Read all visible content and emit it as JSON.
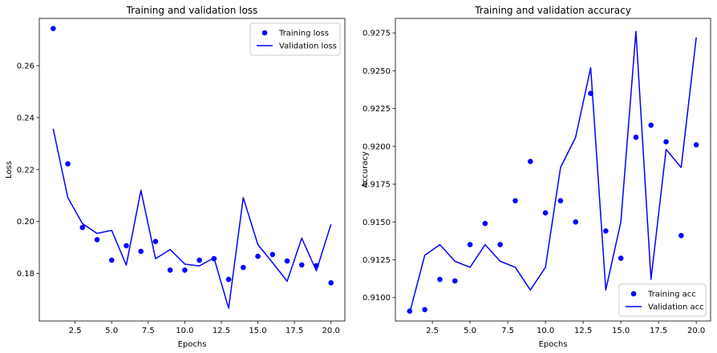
{
  "chart_data": [
    {
      "type": "line",
      "title": "Training and validation loss",
      "xlabel": "Epochs",
      "ylabel": "Loss",
      "xlim": [
        0.05,
        20.95
      ],
      "ylim": [
        0.1617,
        0.2782
      ],
      "xticks": [
        2.5,
        5.0,
        7.5,
        10.0,
        12.5,
        15.0,
        17.5,
        20.0
      ],
      "xtick_labels": [
        "2.5",
        "5.0",
        "7.5",
        "10.0",
        "12.5",
        "15.0",
        "17.5",
        "20.0"
      ],
      "yticks": [
        0.18,
        0.2,
        0.22,
        0.24,
        0.26
      ],
      "ytick_labels": [
        "0.18",
        "0.20",
        "0.22",
        "0.24",
        "0.26"
      ],
      "legend_position": "top-right",
      "grid": false,
      "x": [
        1,
        2,
        3,
        4,
        5,
        6,
        7,
        8,
        9,
        10,
        11,
        12,
        13,
        14,
        15,
        16,
        17,
        18,
        19,
        20
      ],
      "series": [
        {
          "name": "Training loss",
          "style": "points",
          "color": "#0000ff",
          "values": [
            0.2743,
            0.2222,
            0.1977,
            0.193,
            0.1851,
            0.1907,
            0.1885,
            0.1923,
            0.1813,
            0.1813,
            0.1851,
            0.1857,
            0.1777,
            0.1823,
            0.1866,
            0.1873,
            0.1848,
            0.1833,
            0.183,
            0.1764
          ]
        },
        {
          "name": "Validation loss",
          "style": "line",
          "color": "#0000ff",
          "values": [
            0.2357,
            0.2092,
            0.1992,
            0.1954,
            0.1966,
            0.1832,
            0.212,
            0.1857,
            0.1892,
            0.1836,
            0.1829,
            0.186,
            0.1666,
            0.2092,
            0.1911,
            0.1842,
            0.177,
            0.1936,
            0.181,
            0.1989
          ]
        }
      ]
    },
    {
      "type": "line",
      "title": "Training and validation accuracy",
      "xlabel": "Epochs",
      "ylabel": "Accuracy",
      "xlim": [
        0.05,
        20.95
      ],
      "ylim": [
        0.90845,
        0.92846
      ],
      "xticks": [
        2.5,
        5.0,
        7.5,
        10.0,
        12.5,
        15.0,
        17.5,
        20.0
      ],
      "xtick_labels": [
        "2.5",
        "5.0",
        "7.5",
        "10.0",
        "12.5",
        "15.0",
        "17.5",
        "20.0"
      ],
      "yticks": [
        0.91,
        0.9125,
        0.915,
        0.9175,
        0.92,
        0.9225,
        0.925,
        0.9275
      ],
      "ytick_labels": [
        "0.9100",
        "0.9125",
        "0.9150",
        "0.9175",
        "0.9200",
        "0.9225",
        "0.9250",
        "0.9275"
      ],
      "legend_position": "bottom-right",
      "grid": false,
      "x": [
        1,
        2,
        3,
        4,
        5,
        6,
        7,
        8,
        9,
        10,
        11,
        12,
        13,
        14,
        15,
        16,
        17,
        18,
        19,
        20
      ],
      "series": [
        {
          "name": "Training acc",
          "style": "points",
          "color": "#0000ff",
          "values": [
            0.9091,
            0.9092,
            0.9112,
            0.9111,
            0.9135,
            0.9149,
            0.9135,
            0.9164,
            0.919,
            0.9156,
            0.9164,
            0.915,
            0.9235,
            0.9144,
            0.9126,
            0.9206,
            0.9214,
            0.9203,
            0.9141,
            0.9201
          ]
        },
        {
          "name": "Validation acc",
          "style": "line",
          "color": "#0000ff",
          "values": [
            0.909,
            0.9128,
            0.9135,
            0.9124,
            0.912,
            0.9135,
            0.9124,
            0.912,
            0.9105,
            0.912,
            0.9186,
            0.9206,
            0.9252,
            0.9105,
            0.915,
            0.9276,
            0.9112,
            0.9198,
            0.9186,
            0.9272
          ]
        }
      ]
    }
  ]
}
